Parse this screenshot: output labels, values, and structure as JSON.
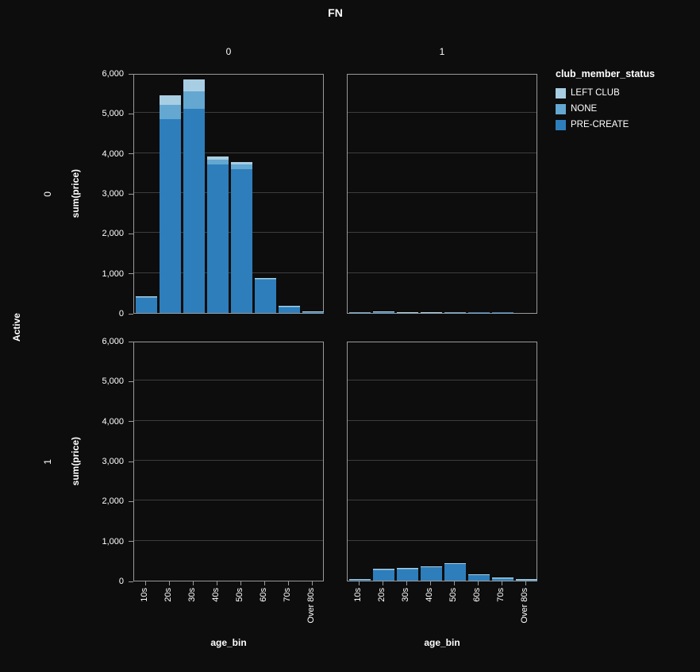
{
  "figure": {
    "title": "FN",
    "row_dimension": "Active",
    "column_headers": [
      "0",
      "1"
    ],
    "row_headers": [
      "0",
      "1"
    ],
    "background": "#0d0d0d"
  },
  "legend": {
    "title": "club_member_status",
    "entries": [
      {
        "label": "LEFT CLUB",
        "color": "#a8cee4"
      },
      {
        "label": "NONE",
        "color": "#64a7d1"
      },
      {
        "label": "PRE-CREATE",
        "color": "#2e7ebc"
      }
    ]
  },
  "chart_data": {
    "type": "bar",
    "stacked": true,
    "title": "FN",
    "legend_title": "club_member_status",
    "legend_position": "top-right",
    "grid": true,
    "xlabel": "age_bin",
    "ylabel": "sum(price)",
    "ylim": [
      0,
      6000
    ],
    "yticks": [
      0,
      1000,
      2000,
      3000,
      4000,
      5000,
      6000
    ],
    "ytick_labels": [
      "0",
      "1,000",
      "2,000",
      "3,000",
      "4,000",
      "5,000",
      "6,000"
    ],
    "categories": [
      "10s",
      "20s",
      "30s",
      "40s",
      "50s",
      "60s",
      "70s",
      "Over 80s"
    ],
    "stack_order": [
      "PRE-CREATE",
      "NONE",
      "LEFT CLUB"
    ],
    "series_colors": {
      "PRE-CREATE": "#2e7ebc",
      "NONE": "#64a7d1",
      "LEFT CLUB": "#a8cee4"
    },
    "facet": {
      "row_field": "Active",
      "column_field": "FN",
      "rows": [
        "0",
        "1"
      ],
      "columns": [
        "0",
        "1"
      ]
    },
    "panels": [
      {
        "row": "0",
        "column": "0",
        "series": [
          {
            "name": "PRE-CREATE",
            "values": [
              380,
              4850,
              5100,
              3720,
              3590,
              840,
              150,
              25
            ]
          },
          {
            "name": "NONE",
            "values": [
              25,
              350,
              450,
              110,
              120,
              20,
              10,
              3
            ]
          },
          {
            "name": "LEFT CLUB",
            "values": [
              20,
              250,
              300,
              80,
              60,
              15,
              8,
              2
            ]
          }
        ]
      },
      {
        "row": "0",
        "column": "1",
        "series": [
          {
            "name": "PRE-CREATE",
            "values": [
              4,
              22,
              14,
              8,
              5,
              2,
              1,
              0
            ]
          },
          {
            "name": "NONE",
            "values": [
              1,
              3,
              2,
              1,
              1,
              0,
              0,
              0
            ]
          },
          {
            "name": "LEFT CLUB",
            "values": [
              0,
              2,
              1,
              1,
              0,
              0,
              0,
              0
            ]
          }
        ]
      },
      {
        "row": "1",
        "column": "0",
        "series": [
          {
            "name": "PRE-CREATE",
            "values": [
              0,
              0,
              0,
              0,
              0,
              0,
              0,
              0
            ]
          },
          {
            "name": "NONE",
            "values": [
              0,
              0,
              0,
              0,
              0,
              0,
              0,
              0
            ]
          },
          {
            "name": "LEFT CLUB",
            "values": [
              0,
              0,
              0,
              0,
              0,
              0,
              0,
              0
            ]
          }
        ]
      },
      {
        "row": "1",
        "column": "1",
        "series": [
          {
            "name": "PRE-CREATE",
            "values": [
              24,
              268,
              286,
              338,
              415,
              148,
              58,
              18
            ]
          },
          {
            "name": "NONE",
            "values": [
              4,
              14,
              16,
              15,
              18,
              8,
              5,
              3
            ]
          },
          {
            "name": "LEFT CLUB",
            "values": [
              2,
              10,
              10,
              12,
              12,
              6,
              4,
              2
            ]
          }
        ]
      }
    ]
  }
}
